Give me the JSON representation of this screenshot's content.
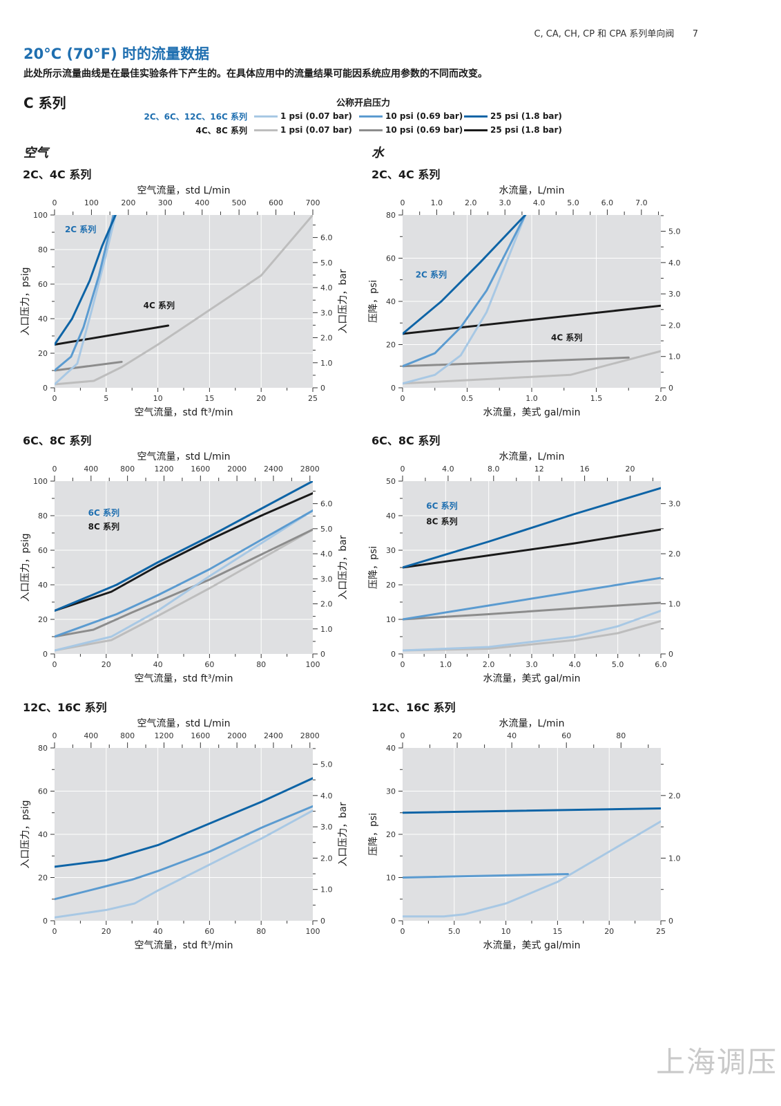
{
  "header": {
    "running_title": "C, CA, CH, CP 和 CPA 系列单向阀",
    "page_number": "7"
  },
  "title": "20°C (70°F) 时的流量数据",
  "subtitle": "此处所示流量曲线是在最佳实验条件下产生的。在具体应用中的流量结果可能因系统应用参数的不同而改变。",
  "series_title": "C 系列",
  "legend": {
    "title": "公称开启压力",
    "rows": [
      {
        "group": "2C、6C、12C、16C 系列",
        "group_color": "#1f6fb0",
        "items": [
          {
            "label": "1 psi (0.07 bar)",
            "color": "#a8c8e4"
          },
          {
            "label": "10 psi (0.69 bar)",
            "color": "#5b9bd0"
          },
          {
            "label": "25 psi (1.8 bar)",
            "color": "#0e64a6"
          }
        ]
      },
      {
        "group": "4C、8C 系列",
        "group_color": "#1a1a1a",
        "items": [
          {
            "label": "1 psi (0.07 bar)",
            "color": "#bdbdbd"
          },
          {
            "label": "10 psi (0.69 bar)",
            "color": "#8c8c8c"
          },
          {
            "label": "25 psi (1.8 bar)",
            "color": "#1a1a1a"
          }
        ]
      }
    ]
  },
  "sections": {
    "air": "空气",
    "water": "水"
  },
  "watermark": "上海调压",
  "chart_data": [
    {
      "id": "c1",
      "type": "line",
      "subtitle": "2C、4C 系列",
      "top_label": "空气流量，std L/min",
      "top_ticks": [
        "0",
        "100",
        "200",
        "300",
        "400",
        "500",
        "600",
        "700"
      ],
      "top_range": [
        0,
        700
      ],
      "xlabel": "空气流量，std ft³/min",
      "xlim": [
        0,
        25
      ],
      "xticks": [
        "0",
        "5",
        "10",
        "15",
        "20",
        "25"
      ],
      "ylabel": "入口压力，psig",
      "ylim": [
        0,
        100
      ],
      "yticks": [
        "0",
        "20",
        "40",
        "60",
        "80",
        "100"
      ],
      "y2label": "入口压力，bar",
      "y2lim": [
        0,
        6.9
      ],
      "y2ticks": [
        "0",
        "1.0",
        "2.0",
        "3.0",
        "4.0",
        "5.0",
        "6.0"
      ],
      "annotations": [
        {
          "text": "2C 系列",
          "x": 1.0,
          "y": 90,
          "color": "#1f6fb0"
        },
        {
          "text": "4C 系列",
          "x": 8.6,
          "y": 46,
          "color": "#1a1a1a"
        }
      ],
      "series": [
        {
          "color": "#bdbdbd",
          "points": [
            [
              0,
              2
            ],
            [
              3.8,
              4
            ],
            [
              6.5,
              12
            ],
            [
              10,
              25
            ],
            [
              15,
              45
            ],
            [
              20,
              65
            ],
            [
              25,
              100
            ]
          ]
        },
        {
          "color": "#8c8c8c",
          "points": [
            [
              0,
              10
            ],
            [
              6.5,
              15
            ]
          ]
        },
        {
          "color": "#1a1a1a",
          "points": [
            [
              0,
              25
            ],
            [
              11,
              36
            ]
          ]
        },
        {
          "color": "#a8c8e4",
          "points": [
            [
              0,
              2
            ],
            [
              2.2,
              14
            ],
            [
              3.6,
              45
            ],
            [
              4.9,
              75
            ],
            [
              5.9,
              100
            ]
          ]
        },
        {
          "color": "#5b9bd0",
          "points": [
            [
              0,
              10
            ],
            [
              1.6,
              18
            ],
            [
              2.8,
              35
            ],
            [
              4.3,
              65
            ],
            [
              5.7,
              100
            ]
          ]
        },
        {
          "color": "#0e64a6",
          "points": [
            [
              0,
              25
            ],
            [
              1.7,
              40
            ],
            [
              3.4,
              62
            ],
            [
              4.6,
              82
            ],
            [
              5.9,
              100
            ]
          ]
        }
      ]
    },
    {
      "id": "c2",
      "type": "line",
      "subtitle": "2C、4C 系列",
      "top_label": "水流量，L/min",
      "top_ticks": [
        "0",
        "1.0",
        "2.0",
        "3.0",
        "4.0",
        "5.0",
        "6.0",
        "7.0"
      ],
      "top_range": [
        0,
        7.57
      ],
      "xlabel": "水流量，美式 gal/min",
      "xlim": [
        0,
        2.0
      ],
      "xticks": [
        "0",
        "0.5",
        "1.0",
        "1.5",
        "2.0"
      ],
      "ylabel": "压降，psi",
      "ylim": [
        0,
        80
      ],
      "yticks": [
        "0",
        "20",
        "40",
        "60",
        "80"
      ],
      "y2label": "",
      "y2lim": [
        0,
        5.52
      ],
      "y2ticks": [
        "0",
        "1.0",
        "2.0",
        "3.0",
        "4.0",
        "5.0"
      ],
      "annotations": [
        {
          "text": "2C 系列",
          "x": 0.1,
          "y": 51,
          "color": "#1f6fb0"
        },
        {
          "text": "4C 系列",
          "x": 1.15,
          "y": 22,
          "color": "#1a1a1a"
        }
      ],
      "series": [
        {
          "color": "#bdbdbd",
          "points": [
            [
              0,
              2
            ],
            [
              1.3,
              6
            ],
            [
              2.0,
              17
            ]
          ]
        },
        {
          "color": "#8c8c8c",
          "points": [
            [
              0,
              10
            ],
            [
              1.75,
              14
            ]
          ]
        },
        {
          "color": "#1a1a1a",
          "points": [
            [
              0,
              25
            ],
            [
              2.0,
              38
            ]
          ]
        },
        {
          "color": "#a8c8e4",
          "points": [
            [
              0,
              2
            ],
            [
              0.25,
              6
            ],
            [
              0.45,
              15
            ],
            [
              0.65,
              35
            ],
            [
              0.95,
              80
            ]
          ]
        },
        {
          "color": "#5b9bd0",
          "points": [
            [
              0,
              10
            ],
            [
              0.25,
              16
            ],
            [
              0.45,
              28
            ],
            [
              0.65,
              45
            ],
            [
              0.95,
              80
            ]
          ]
        },
        {
          "color": "#0e64a6",
          "points": [
            [
              0,
              25
            ],
            [
              0.3,
              40
            ],
            [
              0.6,
              58
            ],
            [
              0.95,
              80
            ]
          ]
        }
      ]
    },
    {
      "id": "c3",
      "type": "line",
      "subtitle": "6C、8C 系列",
      "top_label": "空气流量，std L/min",
      "top_ticks": [
        "0",
        "400",
        "800",
        "1200",
        "1600",
        "2000",
        "2400",
        "2800"
      ],
      "top_range": [
        0,
        2832
      ],
      "xlabel": "空气流量，std ft³/min",
      "xlim": [
        0,
        100
      ],
      "xticks": [
        "0",
        "20",
        "40",
        "60",
        "80",
        "100"
      ],
      "ylabel": "入口压力，psig",
      "ylim": [
        0,
        100
      ],
      "yticks": [
        "0",
        "20",
        "40",
        "60",
        "80",
        "100"
      ],
      "y2label": "入口压力，bar",
      "y2lim": [
        0,
        6.9
      ],
      "y2ticks": [
        "0",
        "1.0",
        "2.0",
        "3.0",
        "4.0",
        "5.0",
        "6.0"
      ],
      "annotations": [
        {
          "text": "6C 系列",
          "x": 13,
          "y": 80,
          "color": "#1f6fb0"
        },
        {
          "text": "8C 系列",
          "x": 13,
          "y": 72,
          "color": "#1a1a1a"
        }
      ],
      "series": [
        {
          "color": "#bdbdbd",
          "points": [
            [
              0,
              2
            ],
            [
              22,
              8
            ],
            [
              40,
              22
            ],
            [
              60,
              38
            ],
            [
              80,
              55
            ],
            [
              100,
              72
            ]
          ]
        },
        {
          "color": "#8c8c8c",
          "points": [
            [
              0,
              10
            ],
            [
              15,
              14
            ],
            [
              30,
              24
            ],
            [
              60,
              43
            ],
            [
              100,
              72
            ]
          ]
        },
        {
          "color": "#1a1a1a",
          "points": [
            [
              0,
              25
            ],
            [
              22,
              36
            ],
            [
              40,
              51
            ],
            [
              60,
              66
            ],
            [
              80,
              80
            ],
            [
              100,
              93
            ]
          ]
        },
        {
          "color": "#a8c8e4",
          "points": [
            [
              0,
              2
            ],
            [
              22,
              10
            ],
            [
              40,
              25
            ],
            [
              60,
              45
            ],
            [
              80,
              64
            ],
            [
              100,
              83
            ]
          ]
        },
        {
          "color": "#5b9bd0",
          "points": [
            [
              0,
              10
            ],
            [
              24,
              23
            ],
            [
              40,
              34
            ],
            [
              60,
              49
            ],
            [
              80,
              66
            ],
            [
              100,
              83
            ]
          ]
        },
        {
          "color": "#0e64a6",
          "points": [
            [
              0,
              25
            ],
            [
              24,
              40
            ],
            [
              40,
              53
            ],
            [
              60,
              68
            ],
            [
              80,
              84
            ],
            [
              100,
              100
            ]
          ]
        }
      ]
    },
    {
      "id": "c4",
      "type": "line",
      "subtitle": "6C、8C 系列",
      "top_label": "水流量，L/min",
      "top_ticks": [
        "0",
        "4.0",
        "8.0",
        "12",
        "16",
        "20"
      ],
      "top_range": [
        0,
        22.7
      ],
      "xlabel": "水流量，美式 gal/min",
      "xlim": [
        0,
        6.0
      ],
      "xticks": [
        "0",
        "1.0",
        "2.0",
        "3.0",
        "4.0",
        "5.0",
        "6.0"
      ],
      "ylabel": "压降，psi",
      "ylim": [
        0,
        50
      ],
      "yticks": [
        "0",
        "10",
        "20",
        "30",
        "40",
        "50"
      ],
      "y2label": "",
      "y2lim": [
        0,
        3.45
      ],
      "y2ticks": [
        "0",
        "1.0",
        "2.0",
        "3.0"
      ],
      "annotations": [
        {
          "text": "6C 系列",
          "x": 0.55,
          "y": 42,
          "color": "#1f6fb0"
        },
        {
          "text": "8C 系列",
          "x": 0.55,
          "y": 37.5,
          "color": "#1a1a1a"
        }
      ],
      "series": [
        {
          "color": "#bdbdbd",
          "points": [
            [
              0,
              1
            ],
            [
              2,
              1.5
            ],
            [
              4,
              4
            ],
            [
              5,
              6
            ],
            [
              6,
              9.5
            ]
          ]
        },
        {
          "color": "#8c8c8c",
          "points": [
            [
              0,
              10
            ],
            [
              2,
              11.5
            ],
            [
              4,
              13.2
            ],
            [
              6,
              14.8
            ]
          ]
        },
        {
          "color": "#1a1a1a",
          "points": [
            [
              0,
              25
            ],
            [
              2,
              28.5
            ],
            [
              4,
              32
            ],
            [
              6,
              36
            ]
          ]
        },
        {
          "color": "#a8c8e4",
          "points": [
            [
              0,
              1
            ],
            [
              2,
              2
            ],
            [
              4,
              5
            ],
            [
              5,
              8
            ],
            [
              6,
              12.5
            ]
          ]
        },
        {
          "color": "#5b9bd0",
          "points": [
            [
              0,
              10
            ],
            [
              2,
              14
            ],
            [
              4,
              18
            ],
            [
              6,
              22
            ]
          ]
        },
        {
          "color": "#0e64a6",
          "points": [
            [
              0,
              25
            ],
            [
              2,
              32.5
            ],
            [
              4,
              40.5
            ],
            [
              6,
              48
            ]
          ]
        }
      ]
    },
    {
      "id": "c5",
      "type": "line",
      "subtitle": "12C、16C 系列",
      "top_label": "空气流量，std L/min",
      "top_ticks": [
        "0",
        "400",
        "800",
        "1200",
        "1600",
        "2000",
        "2400",
        "2800"
      ],
      "top_range": [
        0,
        2832
      ],
      "xlabel": "空气流量，std ft³/min",
      "xlim": [
        0,
        100
      ],
      "xticks": [
        "0",
        "20",
        "40",
        "60",
        "80",
        "100"
      ],
      "ylabel": "入口压力，psig",
      "ylim": [
        0,
        80
      ],
      "yticks": [
        "0",
        "20",
        "40",
        "60",
        "80"
      ],
      "y2label": "入口压力，bar",
      "y2lim": [
        0,
        5.52
      ],
      "y2ticks": [
        "0",
        "1.0",
        "2.0",
        "3.0",
        "4.0",
        "5.0"
      ],
      "annotations": [],
      "series": [
        {
          "color": "#a8c8e4",
          "points": [
            [
              0,
              1.5
            ],
            [
              20,
              5
            ],
            [
              31,
              8
            ],
            [
              40,
              14
            ],
            [
              60,
              26
            ],
            [
              80,
              38
            ],
            [
              100,
              51
            ]
          ]
        },
        {
          "color": "#5b9bd0",
          "points": [
            [
              0,
              10
            ],
            [
              20,
              16
            ],
            [
              30,
              19
            ],
            [
              40,
              23
            ],
            [
              60,
              32
            ],
            [
              80,
              43
            ],
            [
              100,
              53
            ]
          ]
        },
        {
          "color": "#0e64a6",
          "points": [
            [
              0,
              25
            ],
            [
              20,
              28
            ],
            [
              30,
              31.5
            ],
            [
              40,
              35
            ],
            [
              60,
              45
            ],
            [
              80,
              55
            ],
            [
              100,
              66
            ]
          ]
        }
      ]
    },
    {
      "id": "c6",
      "type": "line",
      "subtitle": "12C、16C 系列",
      "top_label": "水流量，L/min",
      "top_ticks": [
        "0",
        "20",
        "40",
        "60",
        "80"
      ],
      "top_range": [
        0,
        94.6
      ],
      "xlabel": "水流量，美式 gal/min",
      "xlim": [
        0,
        25
      ],
      "xticks": [
        "0",
        "5.0",
        "10",
        "15",
        "20",
        "25"
      ],
      "ylabel": "压降，psi",
      "ylim": [
        0,
        40
      ],
      "yticks": [
        "0",
        "10",
        "20",
        "30",
        "40"
      ],
      "y2label": "",
      "y2lim": [
        0,
        2.76
      ],
      "y2ticks": [
        "0",
        "1.0",
        "2.0"
      ],
      "annotations": [],
      "series": [
        {
          "color": "#a8c8e4",
          "points": [
            [
              0,
              1
            ],
            [
              4,
              1
            ],
            [
              6,
              1.5
            ],
            [
              10,
              4
            ],
            [
              15,
              9
            ],
            [
              20,
              16
            ],
            [
              25,
              23
            ]
          ]
        },
        {
          "color": "#5b9bd0",
          "points": [
            [
              0,
              10
            ],
            [
              16,
              10.8
            ]
          ]
        },
        {
          "color": "#0e64a6",
          "points": [
            [
              0,
              25
            ],
            [
              25,
              26
            ]
          ]
        }
      ]
    }
  ]
}
